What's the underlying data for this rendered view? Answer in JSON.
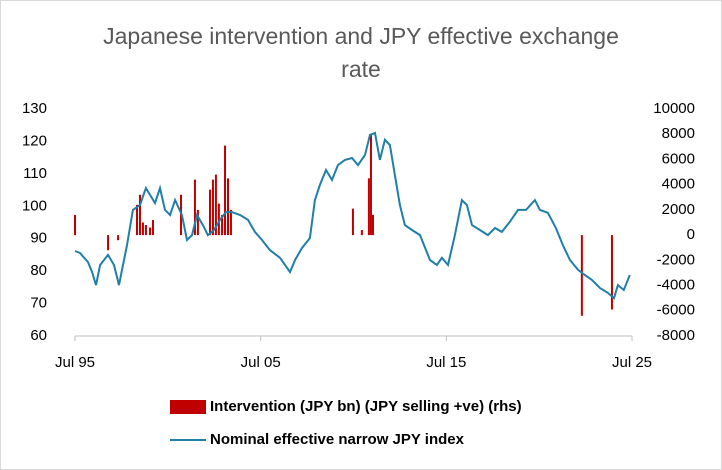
{
  "chart_data": {
    "type": "combo",
    "title": "Japanese intervention and JPY effective exchange",
    "title_line2": "rate",
    "xlim": [
      1995.5,
      2025.5
    ],
    "xticks": [
      {
        "value": 1995.5,
        "label": "Jul 95"
      },
      {
        "value": 2005.5,
        "label": "Jul 05"
      },
      {
        "value": 2015.5,
        "label": "Jul 15"
      },
      {
        "value": 2025.5,
        "label": "Jul 25"
      }
    ],
    "ylim": [
      60,
      130
    ],
    "yticks": [
      60,
      70,
      80,
      90,
      100,
      110,
      120,
      130
    ],
    "y2lim": [
      -8000,
      10000
    ],
    "y2ticks": [
      -8000,
      -6000,
      -4000,
      -2000,
      0,
      2000,
      4000,
      6000,
      8000,
      10000
    ],
    "grid": false,
    "legend": "bottom",
    "series": [
      {
        "name": "Intervention (JPY bn) (JPY selling +ve) (rhs)",
        "type": "bar",
        "axis": "y2",
        "color": "#c00000",
        "x": [
          1995.5,
          1997.28,
          1997.82,
          1998.84,
          1999.0,
          1999.16,
          1999.32,
          1999.54,
          1999.7,
          2001.21,
          2001.96,
          2002.12,
          2002.77,
          2002.93,
          2003.09,
          2003.25,
          2003.42,
          2003.58,
          2003.74,
          2003.9,
          2010.47,
          2010.95,
          2011.33,
          2011.44,
          2011.55,
          2022.8,
          2024.42
        ],
        "values": [
          1600,
          -1200,
          -400,
          2400,
          3200,
          1000,
          800,
          600,
          1200,
          3200,
          4400,
          2000,
          3600,
          4400,
          4800,
          2500,
          1600,
          7100,
          4500,
          2000,
          2100,
          400,
          4500,
          7900,
          1600,
          -6400,
          -5900
        ]
      },
      {
        "name": "Nominal effective narrow JPY index",
        "type": "line",
        "color": "#1f7fa8",
        "x": [
          1995.5,
          1995.77,
          1996.2,
          1996.42,
          1996.63,
          1996.85,
          1997.28,
          1997.6,
          1997.87,
          1998.03,
          1998.3,
          1998.62,
          1999.0,
          1999.32,
          1999.54,
          1999.81,
          2000.08,
          2000.35,
          2000.62,
          2000.89,
          2001.26,
          2001.53,
          2001.8,
          2002.07,
          2002.39,
          2002.66,
          2002.98,
          2003.31,
          2003.63,
          2003.95,
          2004.39,
          2004.82,
          2005.19,
          2005.57,
          2006.0,
          2006.54,
          2007.08,
          2007.35,
          2007.72,
          2008.15,
          2008.42,
          2008.69,
          2009.02,
          2009.34,
          2009.66,
          2010.04,
          2010.42,
          2010.74,
          2011.12,
          2011.39,
          2011.66,
          2011.92,
          2012.19,
          2012.46,
          2012.73,
          2013.0,
          2013.27,
          2013.65,
          2014.08,
          2014.62,
          2014.99,
          2015.26,
          2015.59,
          2015.96,
          2016.34,
          2016.61,
          2016.88,
          2017.31,
          2017.74,
          2018.12,
          2018.49,
          2018.92,
          2019.36,
          2019.79,
          2020.27,
          2020.54,
          2020.97,
          2021.4,
          2021.78,
          2022.16,
          2022.59,
          2022.96,
          2023.34,
          2023.77,
          2024.2,
          2024.53,
          2024.74,
          2025.06,
          2025.38
        ],
        "values": [
          86.2,
          85.6,
          82.8,
          79.7,
          75.7,
          81.9,
          85,
          81.9,
          75.7,
          80.4,
          88,
          98.9,
          100.4,
          105.6,
          103.5,
          101,
          105.6,
          98.9,
          97.3,
          101.9,
          97.3,
          89.6,
          91.1,
          97.3,
          94.2,
          91.1,
          92.7,
          95.8,
          98.2,
          98.2,
          97.3,
          95.8,
          92.1,
          89.6,
          86.5,
          84.1,
          79.7,
          83.4,
          87.1,
          90.2,
          101.9,
          106.6,
          111.2,
          108.1,
          112.7,
          114.3,
          114.9,
          112.7,
          115.8,
          122,
          122.6,
          114.3,
          120.5,
          118.9,
          109.6,
          100.4,
          94.2,
          92.7,
          91.1,
          83.4,
          81.9,
          84.1,
          81.9,
          91.1,
          101.9,
          100.4,
          94.2,
          92.7,
          91.1,
          93.3,
          92.1,
          95.2,
          98.9,
          98.9,
          101.9,
          98.9,
          98,
          93.3,
          88,
          83.4,
          80.4,
          78.8,
          77.3,
          74.8,
          73.3,
          71.7,
          75.7,
          74.2,
          78.8
        ]
      }
    ]
  }
}
